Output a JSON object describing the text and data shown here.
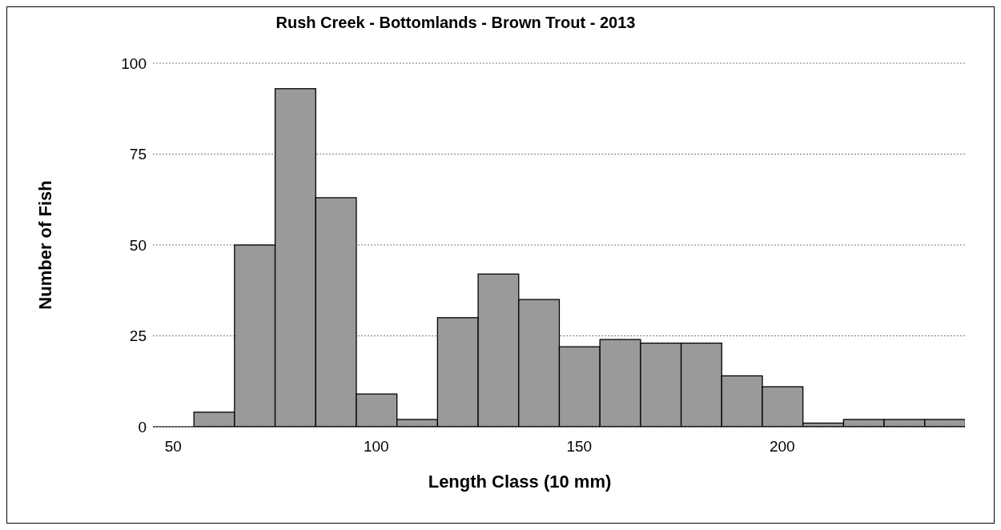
{
  "chart_data": {
    "type": "histogram",
    "title": "Rush Creek - Bottomlands - Brown Trout - 2013",
    "xlabel": "Length Class (10 mm)",
    "ylabel": "Number of Fish",
    "bins": [
      55,
      65,
      75,
      85,
      95,
      105,
      115,
      125,
      135,
      145,
      155,
      165,
      175,
      185,
      195,
      205,
      215,
      225,
      235,
      245
    ],
    "values": [
      4,
      50,
      93,
      63,
      9,
      2,
      30,
      42,
      35,
      22,
      24,
      23,
      23,
      14,
      11,
      1,
      2,
      2,
      2
    ],
    "color": "#9a9a9a",
    "xlim": [
      45,
      245
    ],
    "xticks": [
      50,
      100,
      150,
      200
    ],
    "ylim": [
      0,
      100
    ],
    "yticks": [
      0,
      25,
      50,
      75,
      100
    ],
    "grid": "y"
  }
}
